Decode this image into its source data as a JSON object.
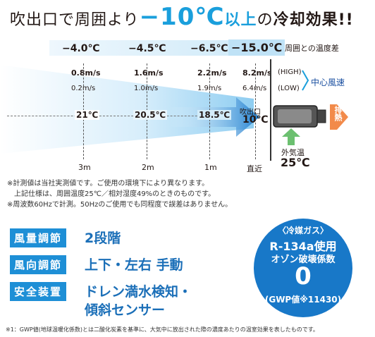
{
  "headline": {
    "part1": "吹出口で周囲より",
    "big": "−10℃",
    "part2": "以上",
    "part3": "の",
    "part4": "冷却効果!!"
  },
  "temp_diff": {
    "values": [
      "−4.0℃",
      "−4.5℃",
      "−6.5℃",
      "−15.0℃"
    ],
    "label": "周囲との温度差"
  },
  "wind": {
    "high": [
      "0.8m/s",
      "1.6m/s",
      "2.2m/s",
      "8.2m/s"
    ],
    "low": [
      "0.2m/s",
      "1.0m/s",
      "1.9m/s",
      "6.4m/s"
    ],
    "high_label": "(HIGH)",
    "low_label": "(LOW)",
    "center_label": "中心風速"
  },
  "temps": [
    "21℃",
    "20.5℃",
    "18.5℃"
  ],
  "outlet": {
    "label": "吹出口",
    "value": "10℃"
  },
  "exhaust": "排熱",
  "outside_air": {
    "label": "外気温",
    "value": "25℃"
  },
  "distances": [
    "3m",
    "2m",
    "1m",
    "直近"
  ],
  "notes": [
    "※計測値は当社実測値です。ご使用の環境下により異なります。",
    "上記仕様は、周囲温度25℃／相対湿度49%のときのものです。",
    "※周波数60Hzで計測。50Hzのご使用でも同程度で誤差はありません。"
  ],
  "specs": [
    {
      "label": "風量調節",
      "value": "2段階"
    },
    {
      "label": "風向調節",
      "value": "上下・左右 手動"
    },
    {
      "label": "安全装置",
      "value": "ドレン満水検知・",
      "value2": "傾斜センサー"
    }
  ],
  "refrigerant": {
    "title": "〈冷媒ガス〉",
    "line1": "R-134a使用",
    "line2": "オゾン破壊係数",
    "big": "0",
    "gwp": "(GWP値※11430)"
  },
  "footnote": "※1：GWP値(地球温暖化係数)とは二酸化炭素を基準に、大気中に放出された際の濃度あたりの温室効果を表したものです。",
  "colors": {
    "accent": "#1a9fdc",
    "spec_blue": "#1b6fb8",
    "label_blue": "#1e8fd6",
    "circle": "#1878c8",
    "exhaust": "#f28a4a",
    "air_arrow": "#6cc070"
  }
}
